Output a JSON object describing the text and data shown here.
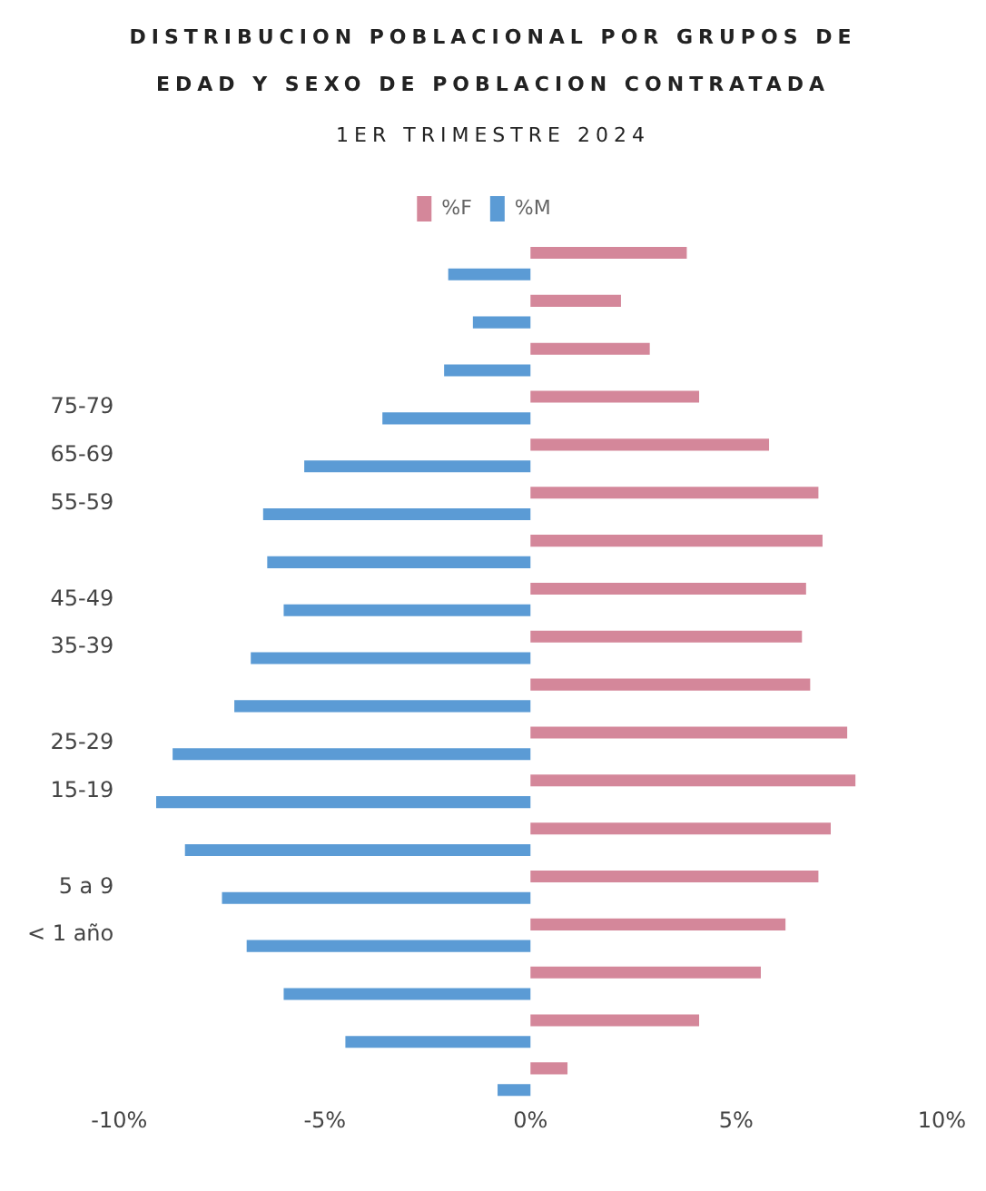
{
  "chart_data": {
    "type": "bar",
    "orientation": "horizontal",
    "title": "DISTRIBUCION POBLACIONAL POR GRUPOS DE EDAD Y SEXO DE POBLACION CONTRATADA",
    "subtitle": "1ER TRIMESTRE 2024",
    "categories": [
      null,
      null,
      null,
      "75-79",
      "65-69",
      "55-59",
      null,
      "45-49",
      "35-39",
      null,
      "25-29",
      "15-19",
      null,
      "5 a 9",
      "< 1 año",
      null,
      null,
      null
    ],
    "series": [
      {
        "name": "%F",
        "color": "#d4879a",
        "values": [
          3.8,
          2.2,
          2.9,
          4.1,
          5.8,
          7.0,
          7.1,
          6.7,
          6.6,
          6.8,
          7.7,
          7.9,
          7.3,
          7.0,
          6.2,
          5.6,
          4.1,
          0.9
        ]
      },
      {
        "name": "%M",
        "color": "#5b9bd5",
        "values": [
          -2.0,
          -1.4,
          -2.1,
          -3.6,
          -5.5,
          -6.5,
          -6.4,
          -6.0,
          -6.8,
          -7.2,
          -8.7,
          -9.1,
          -8.4,
          -7.5,
          -6.9,
          -6.0,
          -4.5,
          -0.8
        ]
      }
    ],
    "xlim": [
      -10,
      10
    ],
    "xticks": [
      {
        "value": -10,
        "label": "-10%"
      },
      {
        "value": -5,
        "label": "-5%"
      },
      {
        "value": 0,
        "label": "0%"
      },
      {
        "value": 5,
        "label": "5%"
      },
      {
        "value": 10,
        "label": "10%"
      }
    ],
    "grid": false,
    "legend": "top"
  }
}
